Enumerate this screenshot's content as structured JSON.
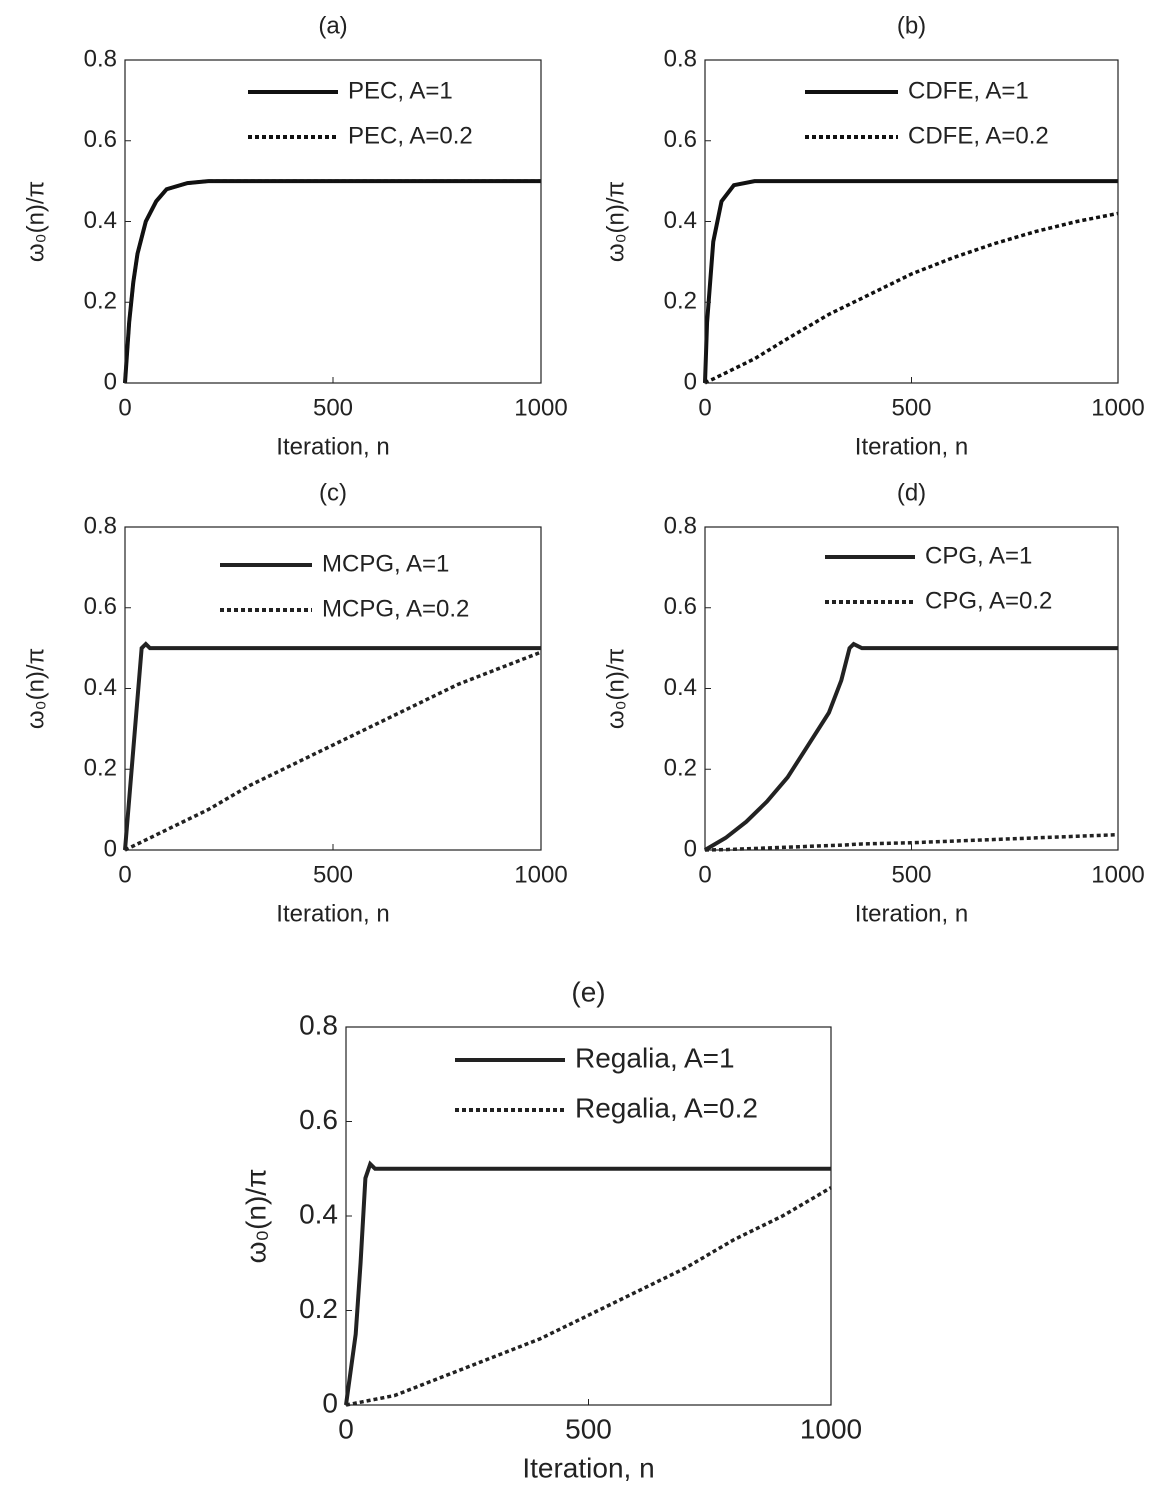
{
  "chart_data": [
    {
      "type": "line",
      "title": "(a)",
      "xlabel": "Iteration, n",
      "ylabel": "ω₀(n)/π",
      "x": [
        0,
        10,
        20,
        30,
        50,
        75,
        100,
        150,
        200,
        250,
        500,
        750,
        1000
      ],
      "series": [
        {
          "name": "PEC, A=1",
          "color": "#111111",
          "dash": "solid",
          "values": [
            0,
            0.15,
            0.25,
            0.32,
            0.4,
            0.45,
            0.48,
            0.495,
            0.5,
            0.5,
            0.5,
            0.5,
            0.5
          ]
        },
        {
          "name": "PEC, A=0.2",
          "color": "#111111",
          "dash": "dotted",
          "values": [
            0,
            0.15,
            0.25,
            0.32,
            0.4,
            0.45,
            0.48,
            0.495,
            0.5,
            0.5,
            0.5,
            0.5,
            0.5
          ]
        }
      ],
      "xlim": [
        0,
        1000
      ],
      "ylim": [
        0,
        0.8
      ],
      "xticks": [
        0,
        500,
        1000
      ],
      "yticks": [
        0,
        0.2,
        0.4,
        0.6,
        0.8
      ],
      "legend": "upper right"
    },
    {
      "type": "line",
      "title": "(b)",
      "xlabel": "Iteration, n",
      "ylabel": "ω₀(n)/π",
      "x": [
        0,
        5,
        20,
        40,
        70,
        120,
        200,
        300,
        400,
        500,
        600,
        700,
        800,
        900,
        1000
      ],
      "series": [
        {
          "name": "CDFE, A=1",
          "color": "#111111",
          "dash": "solid",
          "values": [
            0,
            0.15,
            0.35,
            0.45,
            0.49,
            0.5,
            0.5,
            0.5,
            0.5,
            0.5,
            0.5,
            0.5,
            0.5,
            0.5,
            0.5
          ]
        },
        {
          "name": "CDFE, A=0.2",
          "color": "#111111",
          "dash": "dotted",
          "values": [
            0,
            0.003,
            0.01,
            0.02,
            0.035,
            0.06,
            0.11,
            0.17,
            0.22,
            0.27,
            0.31,
            0.345,
            0.375,
            0.4,
            0.42
          ]
        }
      ],
      "xlim": [
        0,
        1000
      ],
      "ylim": [
        0,
        0.8
      ],
      "xticks": [
        0,
        500,
        1000
      ],
      "yticks": [
        0,
        0.2,
        0.4,
        0.6,
        0.8
      ],
      "legend": "upper right"
    },
    {
      "type": "line",
      "title": "(c)",
      "xlabel": "Iteration, n",
      "ylabel": "ω₀(n)/π",
      "x": [
        0,
        20,
        40,
        50,
        60,
        100,
        200,
        300,
        400,
        500,
        600,
        700,
        800,
        900,
        1000
      ],
      "series": [
        {
          "name": "MCPG, A=1",
          "color": "#222222",
          "dash": "solid",
          "values": [
            0,
            0.25,
            0.5,
            0.51,
            0.5,
            0.5,
            0.5,
            0.5,
            0.5,
            0.5,
            0.5,
            0.5,
            0.5,
            0.5,
            0.5
          ]
        },
        {
          "name": "MCPG, A=0.2",
          "color": "#222222",
          "dash": "dotted",
          "values": [
            0,
            0.01,
            0.02,
            0.025,
            0.03,
            0.05,
            0.1,
            0.16,
            0.21,
            0.26,
            0.31,
            0.36,
            0.41,
            0.45,
            0.49
          ]
        }
      ],
      "xlim": [
        0,
        1000
      ],
      "ylim": [
        0,
        0.8
      ],
      "xticks": [
        0,
        500,
        1000
      ],
      "yticks": [
        0,
        0.2,
        0.4,
        0.6,
        0.8
      ],
      "legend": "upper right"
    },
    {
      "type": "line",
      "title": "(d)",
      "xlabel": "Iteration, n",
      "ylabel": "ω₀(n)/π",
      "x": [
        0,
        50,
        100,
        150,
        200,
        250,
        300,
        330,
        350,
        360,
        380,
        500,
        600,
        700,
        800,
        900,
        1000
      ],
      "series": [
        {
          "name": "CPG, A=1",
          "color": "#222222",
          "dash": "solid",
          "values": [
            0,
            0.03,
            0.07,
            0.12,
            0.18,
            0.26,
            0.34,
            0.42,
            0.5,
            0.51,
            0.5,
            0.5,
            0.5,
            0.5,
            0.5,
            0.5,
            0.5
          ]
        },
        {
          "name": "CPG, A=0.2",
          "color": "#222222",
          "dash": "dotted",
          "values": [
            0,
            0.001,
            0.003,
            0.005,
            0.007,
            0.009,
            0.011,
            0.012,
            0.013,
            0.014,
            0.015,
            0.018,
            0.022,
            0.026,
            0.03,
            0.034,
            0.038
          ]
        }
      ],
      "xlim": [
        0,
        1000
      ],
      "ylim": [
        0,
        0.8
      ],
      "xticks": [
        0,
        500,
        1000
      ],
      "yticks": [
        0,
        0.2,
        0.4,
        0.6,
        0.8
      ],
      "legend": "upper right"
    },
    {
      "type": "line",
      "title": "(e)",
      "xlabel": "Iteration, n",
      "ylabel": "ω₀(n)/π",
      "x": [
        0,
        20,
        30,
        40,
        50,
        60,
        100,
        200,
        300,
        400,
        500,
        600,
        700,
        800,
        900,
        1000
      ],
      "series": [
        {
          "name": "Regalia, A=1",
          "color": "#222222",
          "dash": "solid",
          "values": [
            0,
            0.15,
            0.3,
            0.48,
            0.51,
            0.5,
            0.5,
            0.5,
            0.5,
            0.5,
            0.5,
            0.5,
            0.5,
            0.5,
            0.5,
            0.5
          ]
        },
        {
          "name": "Regalia, A=0.2",
          "color": "#222222",
          "dash": "dotted",
          "values": [
            0,
            0.004,
            0.006,
            0.008,
            0.01,
            0.012,
            0.02,
            0.06,
            0.1,
            0.14,
            0.19,
            0.24,
            0.29,
            0.35,
            0.4,
            0.46
          ]
        }
      ],
      "xlim": [
        0,
        1000
      ],
      "ylim": [
        0,
        0.8
      ],
      "xticks": [
        0,
        500,
        1000
      ],
      "yticks": [
        0,
        0.2,
        0.4,
        0.6,
        0.8
      ],
      "legend": "upper right"
    }
  ]
}
